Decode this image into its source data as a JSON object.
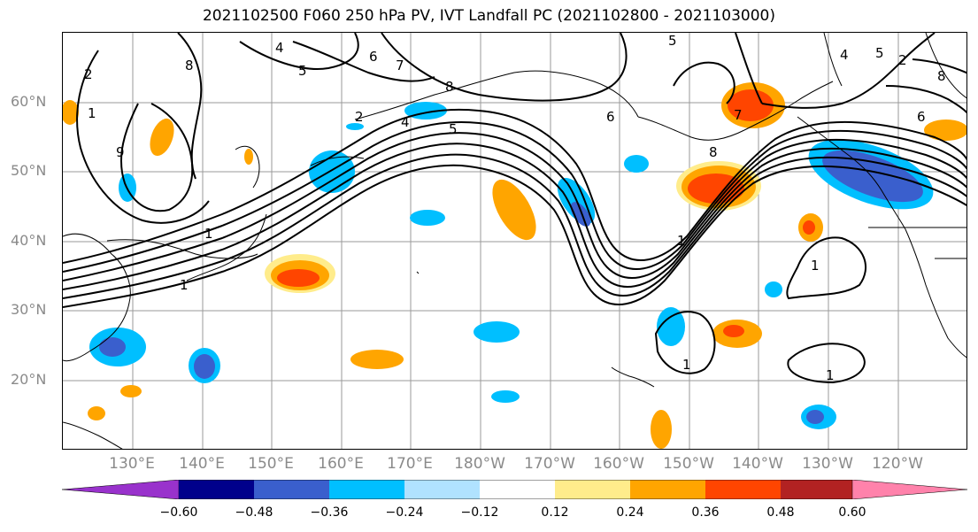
{
  "title": "2021102500 F060 250 hPa PV, IVT Landfall PC (2021102800 - 2021103000)",
  "lat_labels": [
    "60°N",
    "50°N",
    "40°N",
    "30°N",
    "20°N"
  ],
  "lon_labels": [
    "130°E",
    "140°E",
    "150°E",
    "160°E",
    "170°E",
    "180°W",
    "170°W",
    "160°W",
    "150°W",
    "140°W",
    "130°W",
    "120°W"
  ],
  "colorbar": {
    "ticks": [
      "−0.60",
      "−0.48",
      "−0.36",
      "−0.24",
      "−0.12",
      "0.12",
      "0.24",
      "0.36",
      "0.48",
      "0.60"
    ],
    "colors": [
      "#9932cc",
      "#00008b",
      "#3a5fcd",
      "#00bfff",
      "#b0e2ff",
      "#ffffff",
      "#ffec8b",
      "#ffa500",
      "#ff4500",
      "#b22222",
      "#ff82ab"
    ]
  },
  "contour_labels": [
    "2",
    "1",
    "8",
    "4",
    "5",
    "6",
    "7",
    "8",
    "2",
    "4",
    "5",
    "6",
    "9",
    "8",
    "7",
    "5",
    "1",
    "1",
    "1",
    "1",
    "1",
    "1",
    "5",
    "4",
    "2",
    "8",
    "6"
  ]
}
